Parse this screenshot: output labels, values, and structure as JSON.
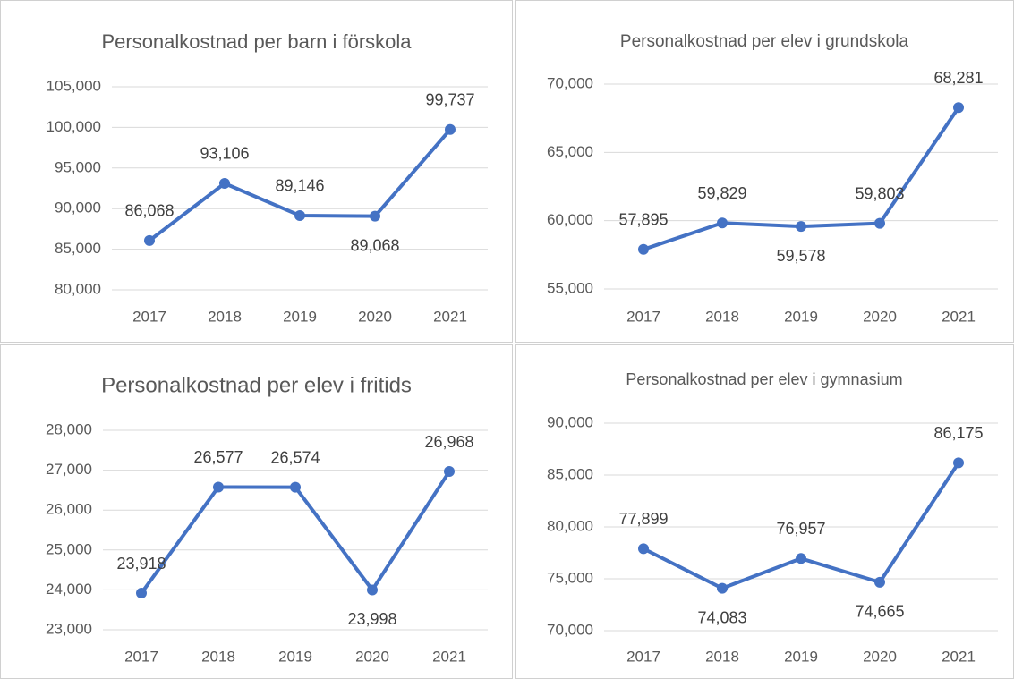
{
  "chart_data": [
    {
      "type": "line",
      "title": "Personalkostnad per barn i förskola",
      "categories": [
        "2017",
        "2018",
        "2019",
        "2020",
        "2021"
      ],
      "series": [
        {
          "name": "Personalkostnad per barn i förskola",
          "color": "#4472c4",
          "values": [
            86068,
            93106,
            89146,
            89068,
            99737
          ],
          "value_labels": [
            "86,068",
            "93,106",
            "89,146",
            "89,068",
            "99,737"
          ]
        }
      ],
      "ylim": [
        80000,
        105000
      ],
      "yticks": [
        {
          "value": 80000,
          "label": "80,000"
        },
        {
          "value": 85000,
          "label": "85,000"
        },
        {
          "value": 90000,
          "label": "90,000"
        },
        {
          "value": 95000,
          "label": "95,000"
        },
        {
          "value": 100000,
          "label": "100,000"
        },
        {
          "value": 105000,
          "label": "105,000"
        }
      ],
      "grid": true
    },
    {
      "type": "line",
      "title": "Personalkostnad per elev i grundskola",
      "categories": [
        "2017",
        "2018",
        "2019",
        "2020",
        "2021"
      ],
      "series": [
        {
          "name": "Personalkostnad per elev i grundskola",
          "color": "#4472c4",
          "values": [
            57895,
            59829,
            59578,
            59803,
            68281
          ],
          "value_labels": [
            "57,895",
            "59,829",
            "59,578",
            "59,803",
            "68,281"
          ]
        }
      ],
      "ylim": [
        55000,
        70000
      ],
      "yticks": [
        {
          "value": 55000,
          "label": "55,000"
        },
        {
          "value": 60000,
          "label": "60,000"
        },
        {
          "value": 65000,
          "label": "65,000"
        },
        {
          "value": 70000,
          "label": "70,000"
        }
      ],
      "grid": true
    },
    {
      "type": "line",
      "title": "Personalkostnad per elev i fritids",
      "categories": [
        "2017",
        "2018",
        "2019",
        "2020",
        "2021"
      ],
      "series": [
        {
          "name": "Personalkostnad per elev i fritids",
          "color": "#4472c4",
          "values": [
            23918,
            26577,
            26574,
            23998,
            26968
          ],
          "value_labels": [
            "23,918",
            "26,577",
            "26,574",
            "23,998",
            "26,968"
          ]
        }
      ],
      "ylim": [
        23000,
        28000
      ],
      "yticks": [
        {
          "value": 23000,
          "label": "23,000"
        },
        {
          "value": 24000,
          "label": "24,000"
        },
        {
          "value": 25000,
          "label": "25,000"
        },
        {
          "value": 26000,
          "label": "26,000"
        },
        {
          "value": 27000,
          "label": "27,000"
        },
        {
          "value": 28000,
          "label": "28,000"
        }
      ],
      "grid": true
    },
    {
      "type": "line",
      "title": "Personalkostnad per elev i gymnasium",
      "categories": [
        "2017",
        "2018",
        "2019",
        "2020",
        "2021"
      ],
      "series": [
        {
          "name": "Personalkostnad per elev i gymnasium",
          "color": "#4472c4",
          "values": [
            77899,
            74083,
            76957,
            74665,
            86175
          ],
          "value_labels": [
            "77,899",
            "74,083",
            "76,957",
            "74,665",
            "86,175"
          ]
        }
      ],
      "ylim": [
        70000,
        90000
      ],
      "yticks": [
        {
          "value": 70000,
          "label": "70,000"
        },
        {
          "value": 75000,
          "label": "75,000"
        },
        {
          "value": 80000,
          "label": "80,000"
        },
        {
          "value": 85000,
          "label": "85,000"
        },
        {
          "value": 90000,
          "label": "90,000"
        }
      ],
      "grid": true
    }
  ]
}
